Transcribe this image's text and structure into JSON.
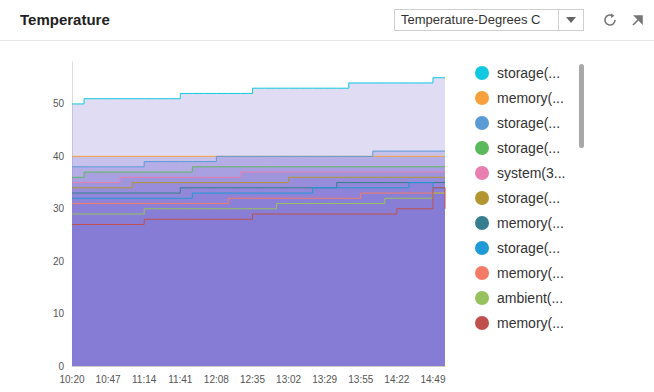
{
  "chart_data": {
    "type": "area",
    "title": "Temperature",
    "subtitle": "Temperature-Degrees C",
    "categories": [
      "10:20",
      null,
      null,
      "10:47",
      null,
      null,
      "11:14",
      null,
      null,
      "11:41",
      null,
      null,
      "12:08",
      null,
      null,
      "12:35",
      null,
      null,
      "13:02",
      null,
      null,
      "13:29",
      null,
      null,
      "13:55",
      null,
      null,
      "14:22",
      null,
      null,
      "14:49",
      null
    ],
    "series": [
      {
        "name": "storage(...",
        "color": "#10c8e0",
        "values": [
          50,
          51,
          51,
          51,
          51,
          51,
          51,
          51,
          51,
          52,
          52,
          52,
          52,
          52,
          52,
          53,
          53,
          53,
          53,
          53,
          53,
          53,
          53,
          54,
          54,
          54,
          54,
          54,
          54,
          54,
          55,
          55
        ]
      },
      {
        "name": "memory(...",
        "color": "#f7a03c",
        "values": [
          40,
          40,
          40,
          40,
          40,
          40,
          40,
          40,
          40,
          40,
          40,
          40,
          40,
          40,
          40,
          40,
          40,
          40,
          40,
          40,
          40,
          40,
          40,
          40,
          40,
          40,
          40,
          40,
          40,
          40,
          40,
          40
        ]
      },
      {
        "name": "storage(...",
        "color": "#5b9bd5",
        "values": [
          38,
          38,
          38,
          38,
          38,
          38,
          39,
          39,
          39,
          39,
          39,
          39,
          40,
          40,
          40,
          40,
          40,
          40,
          40,
          40,
          40,
          40,
          40,
          40,
          40,
          41,
          41,
          41,
          41,
          41,
          41,
          41
        ]
      },
      {
        "name": "storage(...",
        "color": "#5cb85c",
        "values": [
          36,
          37,
          37,
          37,
          37,
          37,
          37,
          37,
          37,
          37,
          38,
          38,
          38,
          38,
          38,
          38,
          38,
          38,
          38,
          38,
          38,
          38,
          38,
          38,
          38,
          38,
          38,
          38,
          38,
          38,
          38,
          38
        ]
      },
      {
        "name": "system(3...",
        "color": "#e87fb0",
        "values": [
          35,
          35,
          35,
          35,
          36,
          36,
          36,
          36,
          36,
          36,
          36,
          36,
          36,
          36,
          37,
          37,
          37,
          37,
          37,
          37,
          37,
          37,
          37,
          37,
          37,
          37,
          37,
          37,
          37,
          37,
          37,
          37
        ]
      },
      {
        "name": "storage(...",
        "color": "#b3962f",
        "values": [
          34,
          34,
          34,
          34,
          34,
          35,
          35,
          35,
          35,
          35,
          35,
          35,
          35,
          35,
          35,
          35,
          35,
          35,
          36,
          36,
          36,
          36,
          36,
          36,
          36,
          36,
          36,
          36,
          36,
          36,
          36,
          36
        ]
      },
      {
        "name": "memory(...",
        "color": "#367e8f",
        "values": [
          33,
          33,
          33,
          33,
          33,
          33,
          33,
          33,
          33,
          34,
          34,
          34,
          34,
          34,
          34,
          34,
          34,
          34,
          34,
          34,
          34,
          34,
          35,
          35,
          35,
          35,
          35,
          35,
          35,
          35,
          35,
          35
        ]
      },
      {
        "name": "storage(...",
        "color": "#1e9ad6",
        "values": [
          32,
          32,
          32,
          32,
          32,
          32,
          32,
          32,
          32,
          32,
          33,
          33,
          33,
          33,
          33,
          33,
          33,
          33,
          33,
          33,
          34,
          34,
          34,
          34,
          34,
          34,
          34,
          34,
          35,
          35,
          34,
          34
        ]
      },
      {
        "name": "memory(...",
        "color": "#f47c66",
        "values": [
          31,
          31,
          31,
          31,
          31,
          31,
          31,
          31,
          31,
          31,
          31,
          31,
          31,
          32,
          32,
          32,
          32,
          32,
          32,
          32,
          32,
          32,
          32,
          32,
          33,
          33,
          33,
          33,
          33,
          33,
          33,
          33
        ]
      },
      {
        "name": "ambient(...",
        "color": "#97c15c",
        "values": [
          29,
          29,
          29,
          29,
          29,
          29,
          30,
          30,
          30,
          30,
          30,
          30,
          30,
          30,
          30,
          30,
          30,
          31,
          31,
          31,
          31,
          31,
          31,
          31,
          31,
          31,
          32,
          32,
          32,
          32,
          33,
          33
        ]
      },
      {
        "name": "memory(...",
        "color": "#c0504d",
        "values": [
          27,
          27,
          27,
          27,
          27,
          27,
          28,
          28,
          28,
          28,
          28,
          28,
          28,
          28,
          28,
          29,
          29,
          29,
          29,
          29,
          29,
          29,
          29,
          29,
          29,
          29,
          29,
          30,
          30,
          30,
          34,
          30
        ]
      }
    ],
    "ylim": [
      0,
      58
    ],
    "yticks": [
      0,
      10,
      20,
      30,
      40,
      50
    ],
    "grid": false,
    "stacked": false,
    "legend": "right"
  }
}
